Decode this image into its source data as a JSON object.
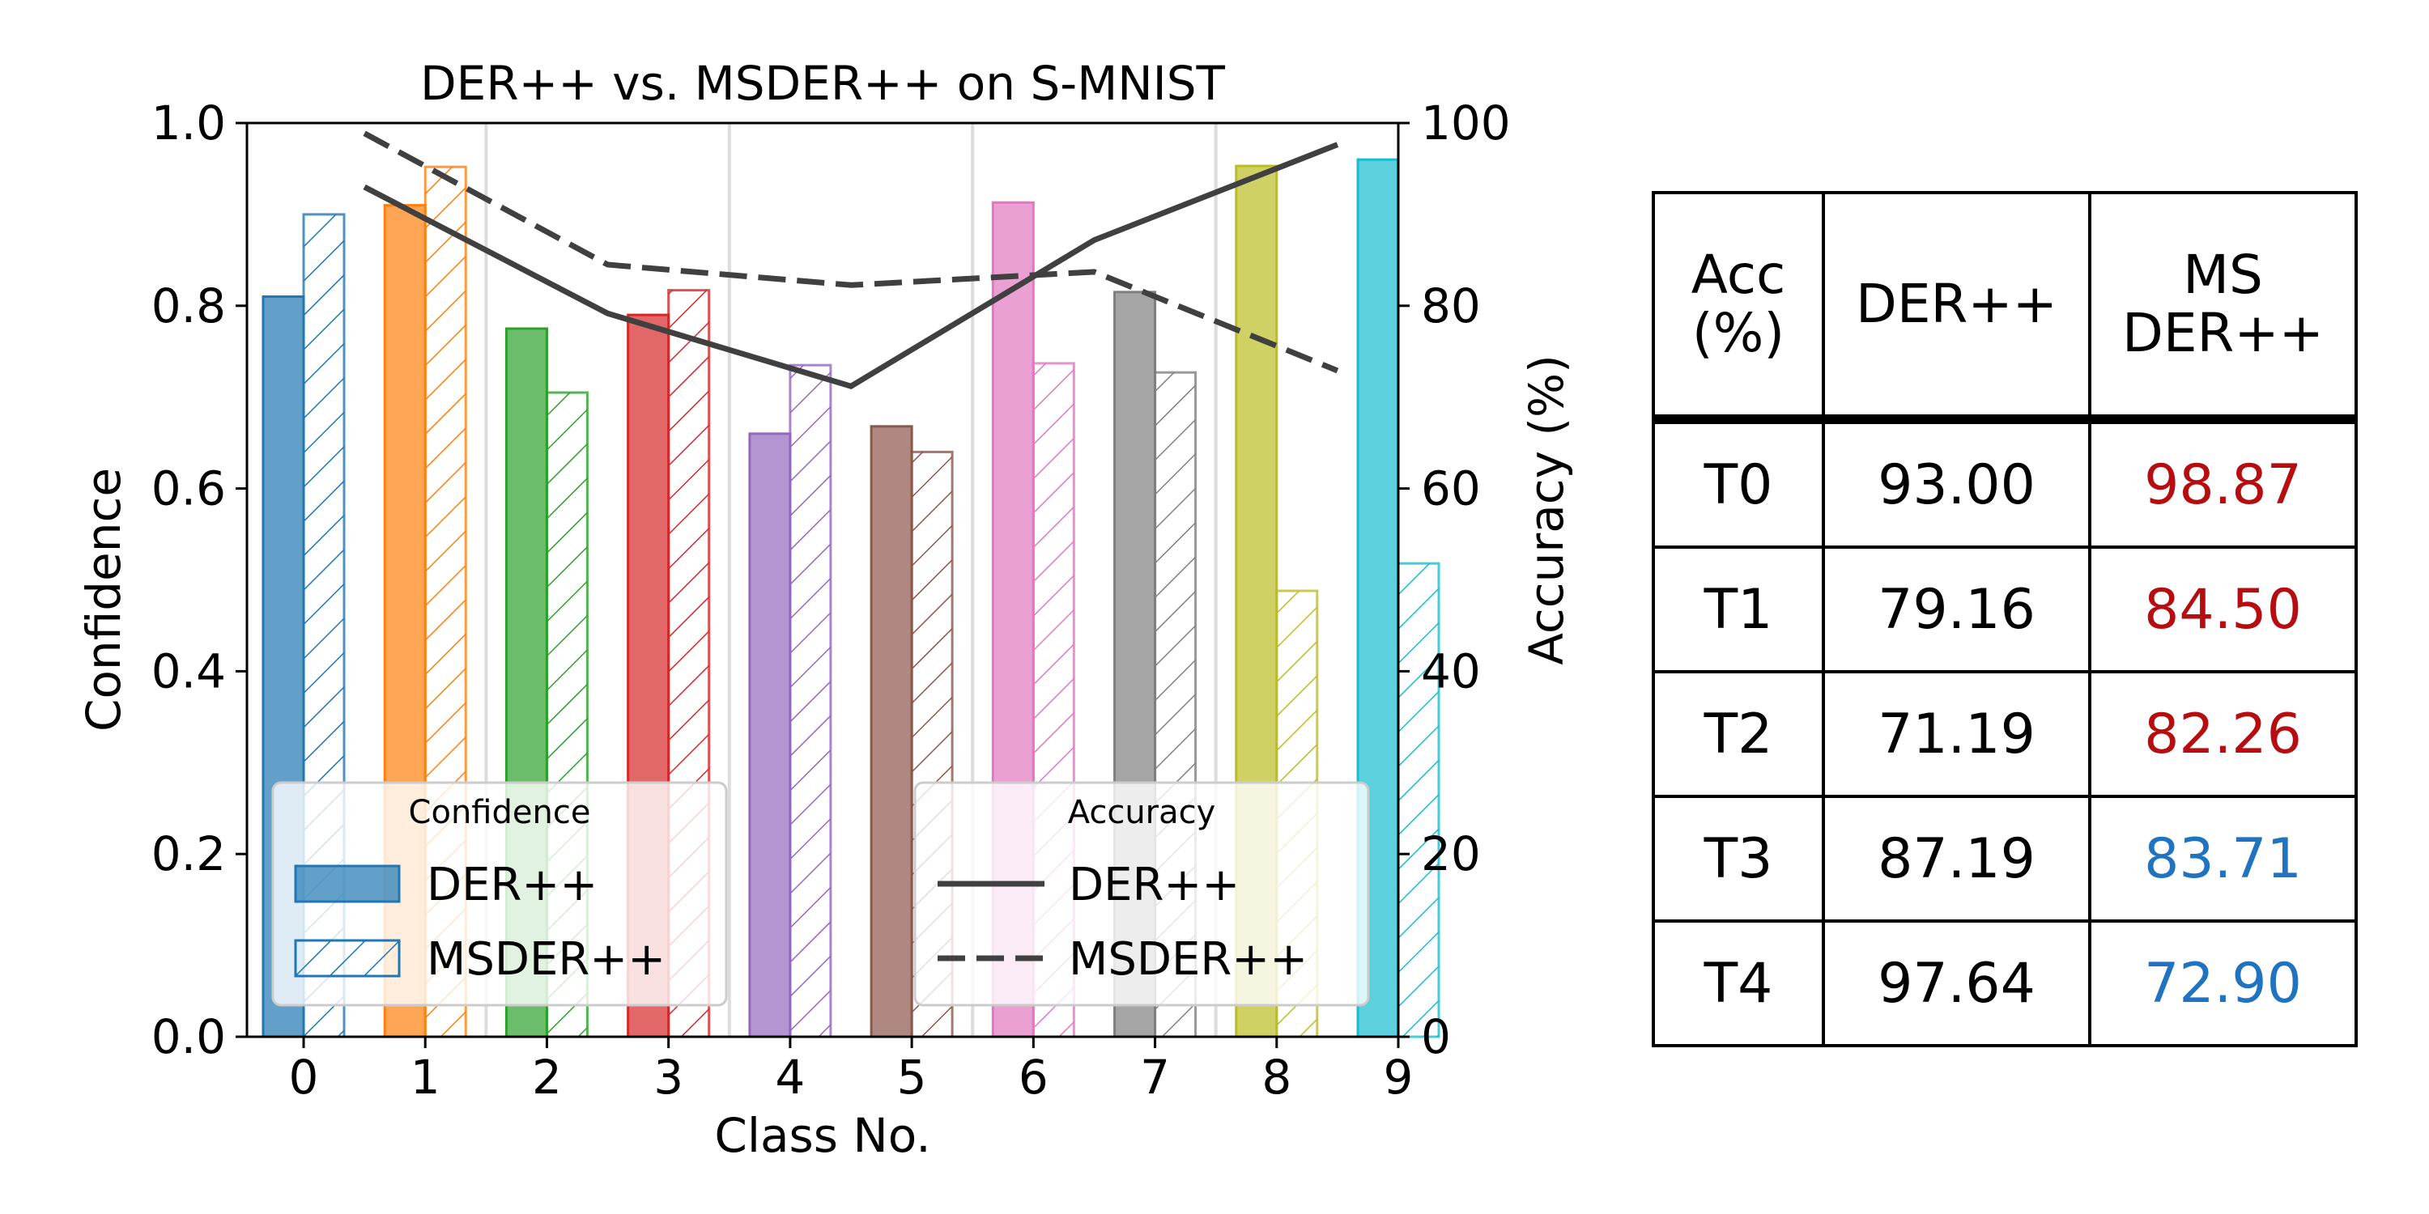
{
  "chart_data": {
    "type": "bar",
    "title": "DER++ vs. MSDER++ on S-MNIST",
    "xlabel": "Class No.",
    "ylabel": "Confidence",
    "y2label": "Accuracy (%)",
    "categories": [
      "0",
      "1",
      "2",
      "3",
      "4",
      "5",
      "6",
      "7",
      "8",
      "9"
    ],
    "ylim": [
      0,
      1.0
    ],
    "yticks": [
      "0.0",
      "0.2",
      "0.4",
      "0.6",
      "0.8",
      "1.0"
    ],
    "y2lim": [
      0,
      100
    ],
    "y2ticks": [
      "0",
      "20",
      "40",
      "60",
      "80",
      "100"
    ],
    "bar_colors": [
      "#1f77b4",
      "#ff7f0e",
      "#2ca02c",
      "#d62728",
      "#9467bd",
      "#8c564b",
      "#e377c2",
      "#7f7f7f",
      "#bcbd22",
      "#17becf"
    ],
    "series": [
      {
        "name": "DER++",
        "style": "solid",
        "values": [
          0.81,
          0.91,
          0.775,
          0.79,
          0.66,
          0.668,
          0.913,
          0.815,
          0.953,
          0.96
        ]
      },
      {
        "name": "MSDER++",
        "style": "hatched",
        "values": [
          0.9,
          0.952,
          0.705,
          0.817,
          0.735,
          0.64,
          0.737,
          0.727,
          0.488,
          0.518
        ]
      }
    ],
    "accuracy_lines": [
      {
        "name": "DER++",
        "style": "solid",
        "x": [
          0.5,
          2.5,
          4.5,
          6.5,
          8.5
        ],
        "values": [
          93.0,
          79.16,
          71.19,
          87.19,
          97.64
        ]
      },
      {
        "name": "MSDER++",
        "style": "dashed",
        "x": [
          0.5,
          2.5,
          4.5,
          6.5,
          8.5
        ],
        "values": [
          98.87,
          84.5,
          82.26,
          83.71,
          72.9
        ]
      }
    ],
    "vlines_x": [
      1.5,
      3.5,
      5.5,
      7.5
    ],
    "legend_confidence": {
      "title": "Confidence",
      "items": [
        "DER++",
        "MSDER++"
      ],
      "position": "lower-left"
    },
    "legend_accuracy": {
      "title": "Accuracy",
      "items": [
        "DER++",
        "MSDER++"
      ],
      "position": "lower-right"
    }
  },
  "table": {
    "header": [
      "Acc\n(%)",
      "DER++",
      "MS\nDER++"
    ],
    "rows": [
      {
        "task": "T0",
        "der": "93.00",
        "msder": "98.87",
        "msder_color": "red"
      },
      {
        "task": "T1",
        "der": "79.16",
        "msder": "84.50",
        "msder_color": "red"
      },
      {
        "task": "T2",
        "der": "71.19",
        "msder": "82.26",
        "msder_color": "red"
      },
      {
        "task": "T3",
        "der": "87.19",
        "msder": "83.71",
        "msder_color": "blue"
      },
      {
        "task": "T4",
        "der": "97.64",
        "msder": "72.90",
        "msder_color": "blue"
      }
    ]
  }
}
